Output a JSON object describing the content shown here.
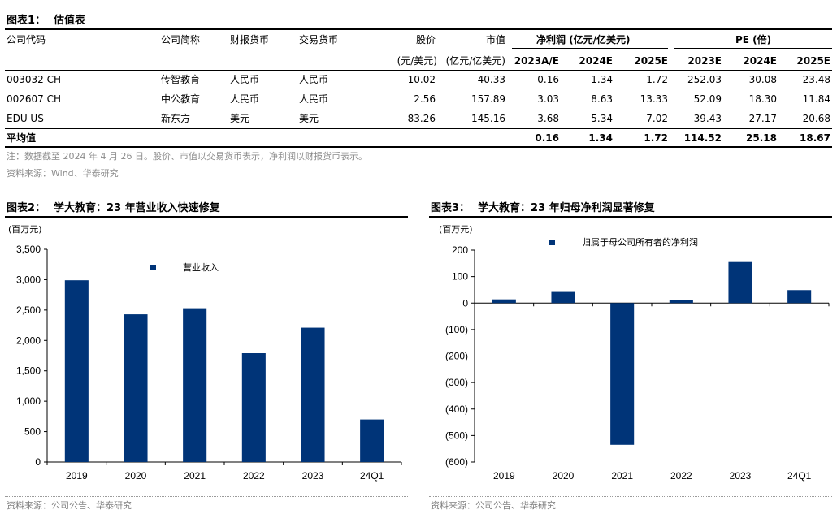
{
  "table": {
    "label": "图表1：",
    "title": "估值表",
    "headers": {
      "code": "公司代码",
      "short_name": "公司简称",
      "report_ccy": "财报货币",
      "trade_ccy": "交易货币",
      "price": "股价",
      "price_unit": "(元/美元)",
      "mktcap": "市值",
      "mktcap_unit": "(亿元/亿美元)",
      "np_group": "净利润 (亿元/亿美元)",
      "pe_group": "PE (倍)",
      "years": [
        "2023A/E",
        "2024E",
        "2025E",
        "2023E",
        "2024E",
        "2025E"
      ]
    },
    "rows": [
      {
        "code": "003032 CH",
        "name": "传智教育",
        "report_ccy": "人民币",
        "trade_ccy": "人民币",
        "price": "10.02",
        "mktcap": "40.33",
        "vals": [
          "0.16",
          "1.34",
          "1.72",
          "252.03",
          "30.08",
          "23.48"
        ]
      },
      {
        "code": "002607 CH",
        "name": "中公教育",
        "report_ccy": "人民币",
        "trade_ccy": "人民币",
        "price": "2.56",
        "mktcap": "157.89",
        "vals": [
          "3.03",
          "8.63",
          "13.33",
          "52.09",
          "18.30",
          "11.84"
        ]
      },
      {
        "code": "EDU US",
        "name": "新东方",
        "report_ccy": "美元",
        "trade_ccy": "美元",
        "price": "83.26",
        "mktcap": "145.16",
        "vals": [
          "3.68",
          "5.34",
          "7.02",
          "39.43",
          "27.17",
          "20.68"
        ]
      }
    ],
    "avg": {
      "label": "平均值",
      "vals": [
        "0.16",
        "1.34",
        "1.72",
        "114.52",
        "25.18",
        "18.67"
      ]
    },
    "note": "注：数据截至 2024 年 4 月 26 日。股价、市值以交易货币表示，净利润以财报货币表示。",
    "source": "资料来源：Wind、华泰研究"
  },
  "fig2": {
    "label": "图表2：",
    "title": "学大教育：23 年营业收入快速修复",
    "unit": "(百万元)",
    "source": "资料来源：公司公告、华泰研究"
  },
  "fig3": {
    "label": "图表3：",
    "title": "学大教育：23 年归母净利润显著修复",
    "unit": "(百万元)",
    "source": "资料来源：公司公告、华泰研究"
  },
  "colors": {
    "bar": "#003478",
    "rule": "#000000"
  },
  "chart_data": [
    {
      "type": "bar",
      "categories": [
        "2019",
        "2020",
        "2021",
        "2022",
        "2023",
        "24Q1"
      ],
      "series": [
        {
          "name": "营业收入",
          "values": [
            2990,
            2430,
            2530,
            1790,
            2210,
            700
          ]
        }
      ],
      "yticks": [
        "0",
        "500",
        "1,000",
        "1,500",
        "2,000",
        "2,500",
        "3,000",
        "3,500"
      ],
      "ylim": [
        0,
        3500
      ],
      "legend": "top-center",
      "grid": false
    },
    {
      "type": "bar",
      "categories": [
        "2019",
        "2020",
        "2021",
        "2022",
        "2023",
        "24Q1"
      ],
      "series": [
        {
          "name": "归属于母公司所有者的净利润",
          "values": [
            14,
            45,
            -535,
            12,
            155,
            49
          ]
        }
      ],
      "yticks": [
        "(600)",
        "(500)",
        "(400)",
        "(300)",
        "(200)",
        "(100)",
        "0",
        "100",
        "200"
      ],
      "ylim": [
        -600,
        200
      ],
      "legend": "top-center",
      "grid": false
    }
  ]
}
